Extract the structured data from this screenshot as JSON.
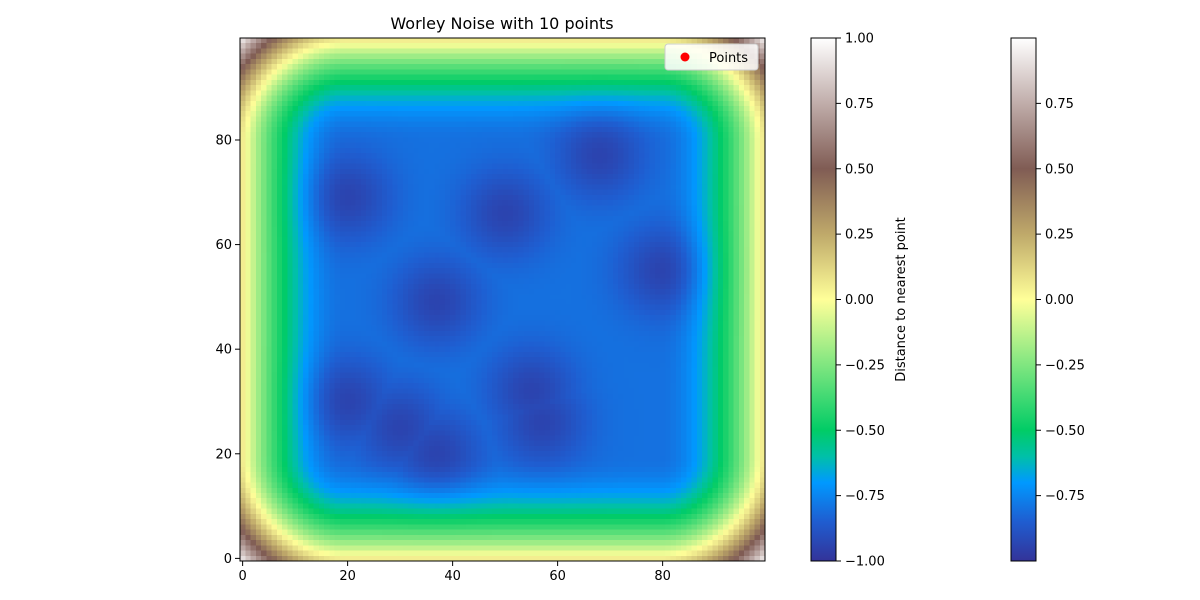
{
  "chart_data": {
    "type": "heatmap",
    "title": "Worley Noise with 10 points",
    "xlabel": "",
    "ylabel": "",
    "xlim": [
      0,
      100
    ],
    "ylim": [
      0,
      100
    ],
    "grid": false,
    "colormap": "terrain",
    "value_range": [
      -1.0,
      1.0
    ],
    "grid_size": 100,
    "xticks": [
      0,
      20,
      40,
      60,
      80
    ],
    "yticks": [
      0,
      20,
      40,
      60,
      80
    ],
    "legend": {
      "placement": "top-right",
      "entries": [
        {
          "label": "Points",
          "color": "#ff0000",
          "marker": "circle"
        }
      ]
    },
    "points_label": "Points",
    "points_color": "#ff0000",
    "approx_dark_centers": [
      {
        "x": 20,
        "y": 69
      },
      {
        "x": 50,
        "y": 66
      },
      {
        "x": 68,
        "y": 77
      },
      {
        "x": 80,
        "y": 55
      },
      {
        "x": 37,
        "y": 49
      },
      {
        "x": 55,
        "y": 32
      },
      {
        "x": 57,
        "y": 26
      },
      {
        "x": 37,
        "y": 20
      },
      {
        "x": 30,
        "y": 25
      },
      {
        "x": 20,
        "y": 30
      }
    ],
    "colorbars": [
      {
        "label": "Distance to nearest point",
        "range": [
          -1.0,
          1.0
        ],
        "ticks": [
          "1.00",
          "0.75",
          "0.50",
          "0.25",
          "0.00",
          "−0.25",
          "−0.50",
          "−0.75",
          "−1.00"
        ]
      },
      {
        "label": "",
        "range": [
          -1.0,
          1.0
        ],
        "ticks": [
          "0.75",
          "0.50",
          "0.25",
          "0.00",
          "−0.25",
          "−0.50",
          "−0.75"
        ]
      }
    ]
  }
}
